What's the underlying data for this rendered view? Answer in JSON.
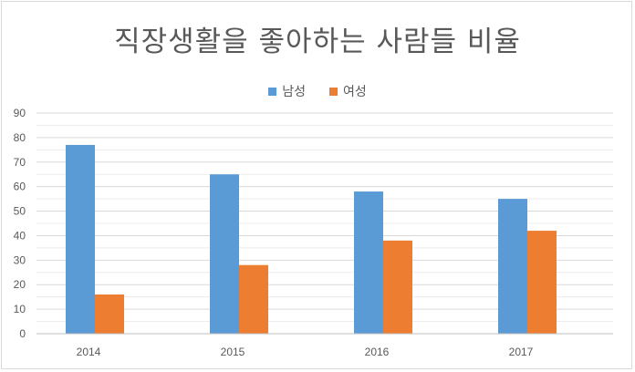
{
  "chart_data": {
    "type": "bar",
    "title": "직장생활을 좋아하는 사람들 비율",
    "categories": [
      "2014",
      "2015",
      "2016",
      "2017"
    ],
    "series": [
      {
        "name": "남성",
        "color": "#5b9bd5",
        "values": [
          77,
          65,
          58,
          55
        ]
      },
      {
        "name": "여성",
        "color": "#ed7d31",
        "values": [
          16,
          28,
          38,
          42
        ]
      }
    ],
    "ylim": [
      0,
      90
    ],
    "yticks": [
      0,
      10,
      20,
      30,
      40,
      50,
      60,
      70,
      80,
      90
    ],
    "grid": true,
    "legend_position": "top"
  }
}
